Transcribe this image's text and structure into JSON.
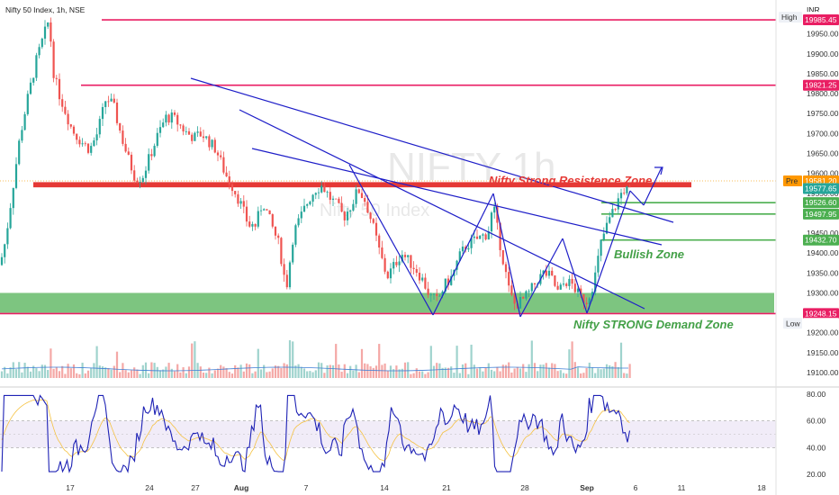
{
  "header": {
    "symbol_title": "Nifty 50 Index, 1h, NSE",
    "currency": "INR",
    "watermark_big": "NIFTY 1h",
    "watermark_small": "Nifty 50 Index"
  },
  "chart_data": {
    "type": "candlestick",
    "title": "Nifty 50 Index, 1h, NSE",
    "price_axis": {
      "min": 19050,
      "max": 20010,
      "ticks": [
        19100,
        19150,
        19200,
        19250,
        19300,
        19350,
        19400,
        19450,
        19500,
        19550,
        19600,
        19650,
        19700,
        19750,
        19800,
        19850,
        19900,
        19950
      ]
    },
    "x_axis": {
      "tick_labels": [
        "17",
        "24",
        "27",
        "Aug",
        "7",
        "14",
        "21",
        "28",
        "Sep",
        "6",
        "11",
        "18"
      ],
      "bold_labels": [
        "Aug",
        "Sep"
      ]
    },
    "price_labels": [
      {
        "text": "High",
        "value": "19991.85",
        "color": "#ffffff",
        "text_color": "#222222",
        "price": 19991.85
      },
      {
        "text": "",
        "value": "19985.45",
        "color": "#e91e63",
        "text_color": "#ffffff",
        "price": 19985.45
      },
      {
        "text": "",
        "value": "19821.25",
        "color": "#e91e63",
        "text_color": "#ffffff",
        "price": 19821.25
      },
      {
        "text": "Pre",
        "value": "19581.20",
        "color": "#ff9800",
        "text_color": "#ffffff",
        "price": 19581.2
      },
      {
        "text": "",
        "value": "19577.65",
        "color": "#26a69a",
        "text_color": "#ffffff",
        "price": 19562
      },
      {
        "text": "",
        "value": "19526.60",
        "color": "#4caf50",
        "text_color": "#ffffff",
        "price": 19526.6
      },
      {
        "text": "",
        "value": "19497.95",
        "color": "#4caf50",
        "text_color": "#ffffff",
        "price": 19497.95
      },
      {
        "text": "",
        "value": "19432.70",
        "color": "#4caf50",
        "text_color": "#ffffff",
        "price": 19432.7
      },
      {
        "text": "",
        "value": "19248.15",
        "color": "#e91e63",
        "text_color": "#ffffff",
        "price": 19248.15
      },
      {
        "text": "Low",
        "value": "19223.65",
        "color": "#ffffff",
        "text_color": "#222222",
        "price": 19223.65
      }
    ],
    "horizontal_levels": [
      {
        "price": 19985.45,
        "color": "#e91e63",
        "x_start_day": 19.5
      },
      {
        "price": 19821.25,
        "color": "#e91e63",
        "x_start_day": 18.5
      },
      {
        "price": 19526.6,
        "color": "#4caf50",
        "x_start_day": 33.8
      },
      {
        "price": 19497.95,
        "color": "#4caf50",
        "x_start_day": 33.8
      },
      {
        "price": 19432.7,
        "color": "#4caf50",
        "x_start_day": 33.8
      },
      {
        "price": 19248.15,
        "color": "#e91e63",
        "x_start_day": 0
      }
    ],
    "zones": [
      {
        "name": "resistance",
        "from": 19565,
        "to": 19578,
        "color": "#e53935"
      },
      {
        "name": "demand",
        "from": 19250,
        "to": 19300,
        "color": "#66bb6a"
      }
    ],
    "annotations": [
      {
        "text": "Nifty Strong Resistence Zone",
        "color": "#e53935"
      },
      {
        "text": "Bullish Zone",
        "color": "#43a047"
      },
      {
        "text": "Nifty STRONG Demand Zone",
        "color": "#43a047"
      }
    ],
    "rsi": {
      "ticks": [
        20,
        40,
        60,
        80
      ],
      "band": [
        40,
        60
      ]
    }
  }
}
